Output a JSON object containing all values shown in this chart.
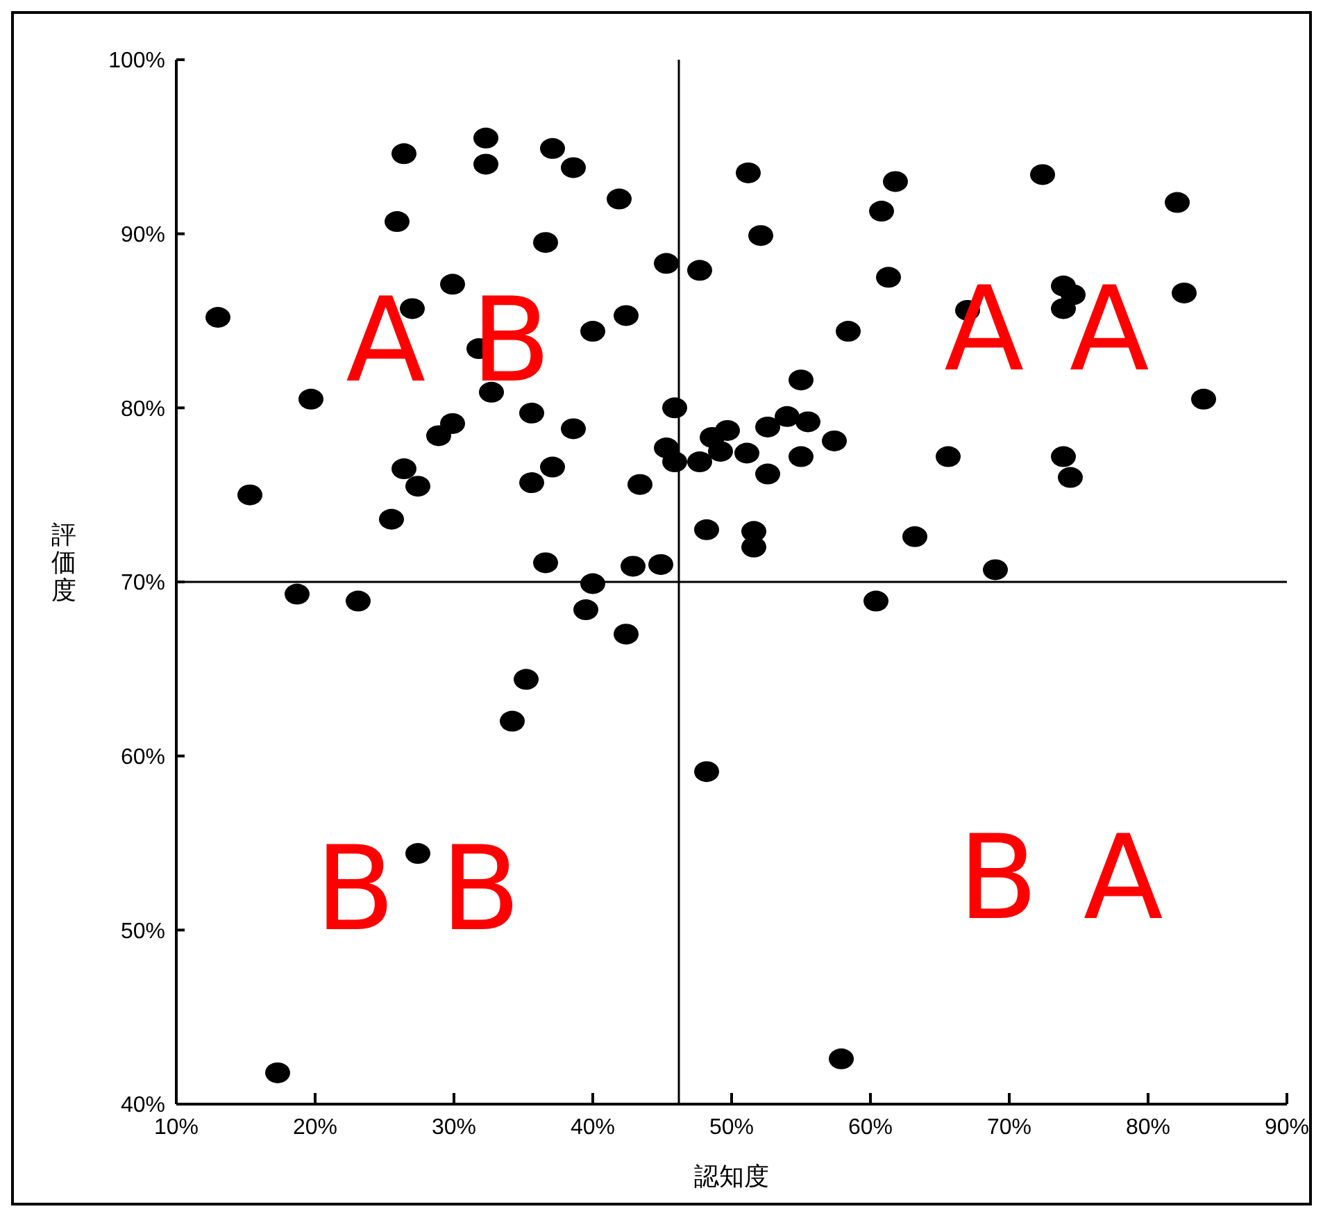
{
  "chart_data": {
    "type": "scatter",
    "xlabel": "認知度",
    "ylabel": "評価度",
    "xlim": [
      10,
      90
    ],
    "xticks": [
      {
        "value": 10,
        "label": "10%"
      },
      {
        "value": 20,
        "label": "20%"
      },
      {
        "value": 30,
        "label": "30%"
      },
      {
        "value": 40,
        "label": "40%"
      },
      {
        "value": 50,
        "label": "50%"
      },
      {
        "value": 60,
        "label": "60%"
      },
      {
        "value": 70,
        "label": "70%"
      },
      {
        "value": 80,
        "label": "80%"
      },
      {
        "value": 90,
        "label": "90%"
      }
    ],
    "ylim": [
      40,
      100
    ],
    "yticks": [
      {
        "value": 40,
        "label": "40%"
      },
      {
        "value": 50,
        "label": "50%"
      },
      {
        "value": 60,
        "label": "60%"
      },
      {
        "value": 70,
        "label": "70%"
      },
      {
        "value": 80,
        "label": "80%"
      },
      {
        "value": 90,
        "label": "90%"
      },
      {
        "value": 100,
        "label": "100%"
      }
    ],
    "grid": false,
    "legend": false,
    "marker": "circle",
    "ref_lines": [
      {
        "axis": "x",
        "value": 46.2,
        "color": "#000000"
      },
      {
        "axis": "y",
        "value": 70,
        "color": "#000000"
      }
    ],
    "annotations": [
      "A B",
      "A A",
      "B B",
      "B A"
    ],
    "series": [
      {
        "color": "#000000",
        "x": [
          13.0,
          15.3,
          19.7,
          18.7,
          23.1,
          17.3,
          26.4,
          25.9,
          27.0,
          25.5,
          26.4,
          27.4,
          27.4,
          29.9,
          28.9,
          29.9,
          31.8,
          32.3,
          32.3,
          32.7,
          35.6,
          35.6,
          37.1,
          38.6,
          41.9,
          36.6,
          45.3,
          47.7,
          42.4,
          40.0,
          45.9,
          38.6,
          45.3,
          45.9,
          47.7,
          48.6,
          37.1,
          43.4,
          48.2,
          36.6,
          42.9,
          44.9,
          40.0,
          39.5,
          42.4,
          35.2,
          34.2,
          48.2,
          51.2,
          61.8,
          72.4,
          82.1,
          60.8,
          52.1,
          61.3,
          73.9,
          74.6,
          73.9,
          67.0,
          82.6,
          58.4,
          55.0,
          84.0,
          54.0,
          55.5,
          52.6,
          49.7,
          57.4,
          49.2,
          51.1,
          55.0,
          65.6,
          73.9,
          74.4,
          52.6,
          51.6,
          51.6,
          63.2,
          69.0,
          60.4,
          57.9
        ],
        "values": [
          85.2,
          75.0,
          80.5,
          69.3,
          68.9,
          41.8,
          94.6,
          90.7,
          85.7,
          73.6,
          76.5,
          75.5,
          54.4,
          87.1,
          78.4,
          79.1,
          83.4,
          95.5,
          94.0,
          80.9,
          79.7,
          75.7,
          94.9,
          93.8,
          92.0,
          89.5,
          88.3,
          87.9,
          85.3,
          84.4,
          80.0,
          78.8,
          77.7,
          76.9,
          76.9,
          78.3,
          76.6,
          75.6,
          73.0,
          71.1,
          70.9,
          71.0,
          69.9,
          68.4,
          67.0,
          64.4,
          62.0,
          59.1,
          93.5,
          93.0,
          93.4,
          91.8,
          91.3,
          89.9,
          87.5,
          87.0,
          86.5,
          85.7,
          85.6,
          86.6,
          84.4,
          81.6,
          80.5,
          79.5,
          79.2,
          78.9,
          78.7,
          78.1,
          77.5,
          77.4,
          77.2,
          77.2,
          77.2,
          76.0,
          76.2,
          72.9,
          72.0,
          72.6,
          70.7,
          68.9,
          42.6
        ]
      }
    ]
  }
}
